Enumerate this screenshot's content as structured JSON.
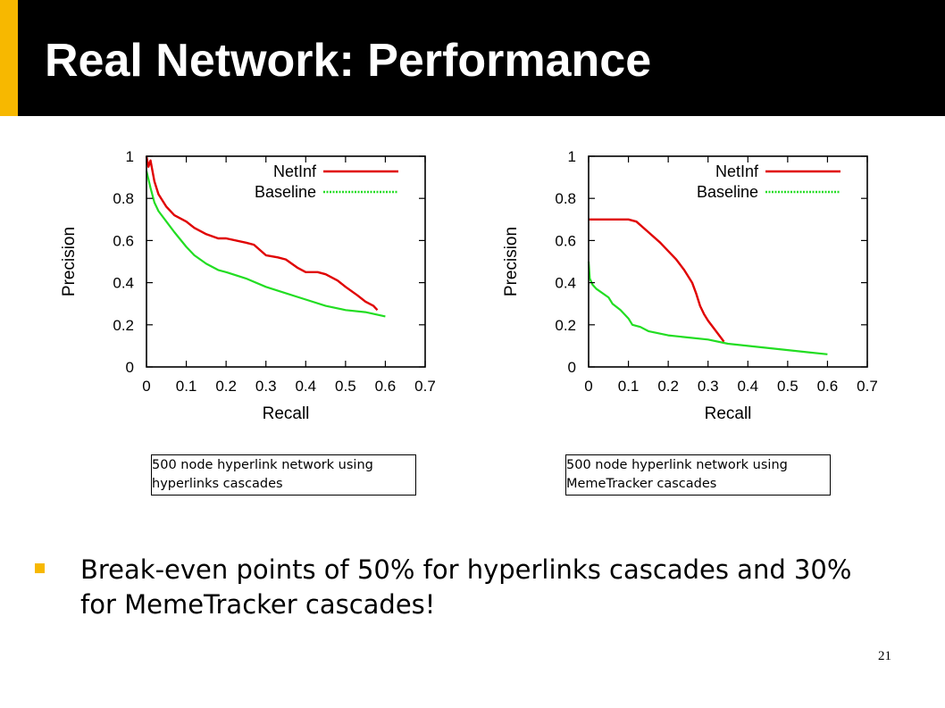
{
  "slide": {
    "title": "Real Network: Performance",
    "bullet": "Break-even points of 50% for hyperlinks cascades and 30% for MemeTracker cascades!",
    "page_number": "21",
    "accent_color": "#f7b800",
    "title_bar_color": "#000000"
  },
  "captions": [
    {
      "line1": "500 node hyperlink network using",
      "line2": "hyperlinks cascades"
    },
    {
      "line1": "500 node hyperlink network using",
      "line2": "MemeTracker cascades"
    }
  ],
  "chart_data": [
    {
      "type": "line",
      "xlabel": "Recall",
      "ylabel": "Precision",
      "xlim": [
        0,
        0.7
      ],
      "ylim": [
        0,
        1
      ],
      "xticks": [
        "0",
        "0.1",
        "0.2",
        "0.3",
        "0.4",
        "0.5",
        "0.6",
        "0.7"
      ],
      "yticks": [
        "0",
        "0.2",
        "0.4",
        "0.6",
        "0.8",
        "1"
      ],
      "legend_position": "top-right",
      "series": [
        {
          "name": "NetInf",
          "color": "#e00000",
          "style": "solid",
          "x": [
            0,
            0.005,
            0.01,
            0.02,
            0.03,
            0.05,
            0.07,
            0.1,
            0.12,
            0.15,
            0.18,
            0.2,
            0.25,
            0.27,
            0.3,
            0.33,
            0.35,
            0.38,
            0.4,
            0.43,
            0.45,
            0.48,
            0.5,
            0.53,
            0.55,
            0.57,
            0.58
          ],
          "y": [
            1.0,
            0.95,
            0.98,
            0.88,
            0.82,
            0.76,
            0.72,
            0.69,
            0.66,
            0.63,
            0.61,
            0.61,
            0.59,
            0.58,
            0.53,
            0.52,
            0.51,
            0.47,
            0.45,
            0.45,
            0.44,
            0.41,
            0.38,
            0.34,
            0.31,
            0.29,
            0.27
          ]
        },
        {
          "name": "Baseline",
          "color": "#22dd22",
          "style": "dotted",
          "x": [
            0,
            0.01,
            0.02,
            0.03,
            0.05,
            0.07,
            0.1,
            0.12,
            0.15,
            0.18,
            0.2,
            0.25,
            0.3,
            0.35,
            0.4,
            0.45,
            0.5,
            0.55,
            0.6
          ],
          "y": [
            0.93,
            0.85,
            0.78,
            0.74,
            0.69,
            0.64,
            0.57,
            0.53,
            0.49,
            0.46,
            0.45,
            0.42,
            0.38,
            0.35,
            0.32,
            0.29,
            0.27,
            0.26,
            0.24
          ]
        }
      ]
    },
    {
      "type": "line",
      "xlabel": "Recall",
      "ylabel": "Precision",
      "xlim": [
        0,
        0.7
      ],
      "ylim": [
        0,
        1
      ],
      "xticks": [
        "0",
        "0.1",
        "0.2",
        "0.3",
        "0.4",
        "0.5",
        "0.6",
        "0.7"
      ],
      "yticks": [
        "0",
        "0.2",
        "0.4",
        "0.6",
        "0.8",
        "1"
      ],
      "legend_position": "top-right",
      "series": [
        {
          "name": "NetInf",
          "color": "#e00000",
          "style": "solid",
          "x": [
            0,
            0.05,
            0.1,
            0.12,
            0.15,
            0.18,
            0.2,
            0.22,
            0.24,
            0.26,
            0.27,
            0.28,
            0.29,
            0.3,
            0.32,
            0.34
          ],
          "y": [
            0.7,
            0.7,
            0.7,
            0.69,
            0.64,
            0.59,
            0.55,
            0.51,
            0.46,
            0.4,
            0.35,
            0.29,
            0.25,
            0.22,
            0.17,
            0.12
          ]
        },
        {
          "name": "Baseline",
          "color": "#22dd22",
          "style": "dotted",
          "x": [
            0,
            0.003,
            0.01,
            0.02,
            0.05,
            0.06,
            0.08,
            0.1,
            0.11,
            0.13,
            0.15,
            0.2,
            0.25,
            0.3,
            0.35,
            0.4,
            0.5,
            0.55,
            0.6
          ],
          "y": [
            0.5,
            0.42,
            0.39,
            0.37,
            0.33,
            0.3,
            0.27,
            0.23,
            0.2,
            0.19,
            0.17,
            0.15,
            0.14,
            0.13,
            0.11,
            0.1,
            0.08,
            0.07,
            0.06
          ]
        }
      ]
    }
  ]
}
